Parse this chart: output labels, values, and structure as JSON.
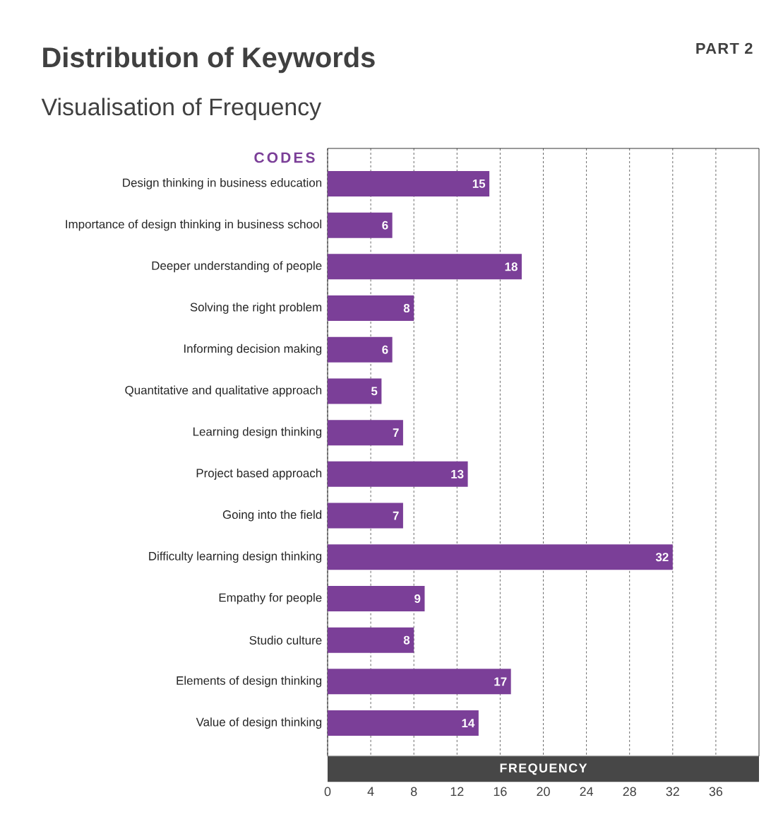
{
  "chart_data": {
    "type": "bar",
    "orientation": "horizontal",
    "title": "Distribution of Keywords",
    "subtitle": "Visualisation of Frequency",
    "annotations": [
      "PART 2"
    ],
    "ylabel": "CODES",
    "xlabel": "FREQUENCY",
    "categories": [
      "Design thinking in business education",
      "Importance of design thinking in business school",
      "Deeper understanding of people",
      "Solving the right problem",
      "Informing decision making",
      "Quantitative and qualitative approach",
      "Learning design thinking",
      "Project based approach",
      "Going into the field",
      "Difficulty learning design thinking",
      "Empathy for people",
      "Studio culture",
      "Elements of design thinking",
      "Value of design thinking"
    ],
    "values": [
      15,
      6,
      18,
      8,
      6,
      5,
      7,
      13,
      7,
      32,
      9,
      8,
      17,
      14
    ],
    "color": "#7b3f98",
    "xlim": [
      0,
      40
    ],
    "xticks": [
      0,
      4,
      8,
      12,
      16,
      20,
      24,
      28,
      32,
      36
    ],
    "grid": "x",
    "data_labels": true
  }
}
